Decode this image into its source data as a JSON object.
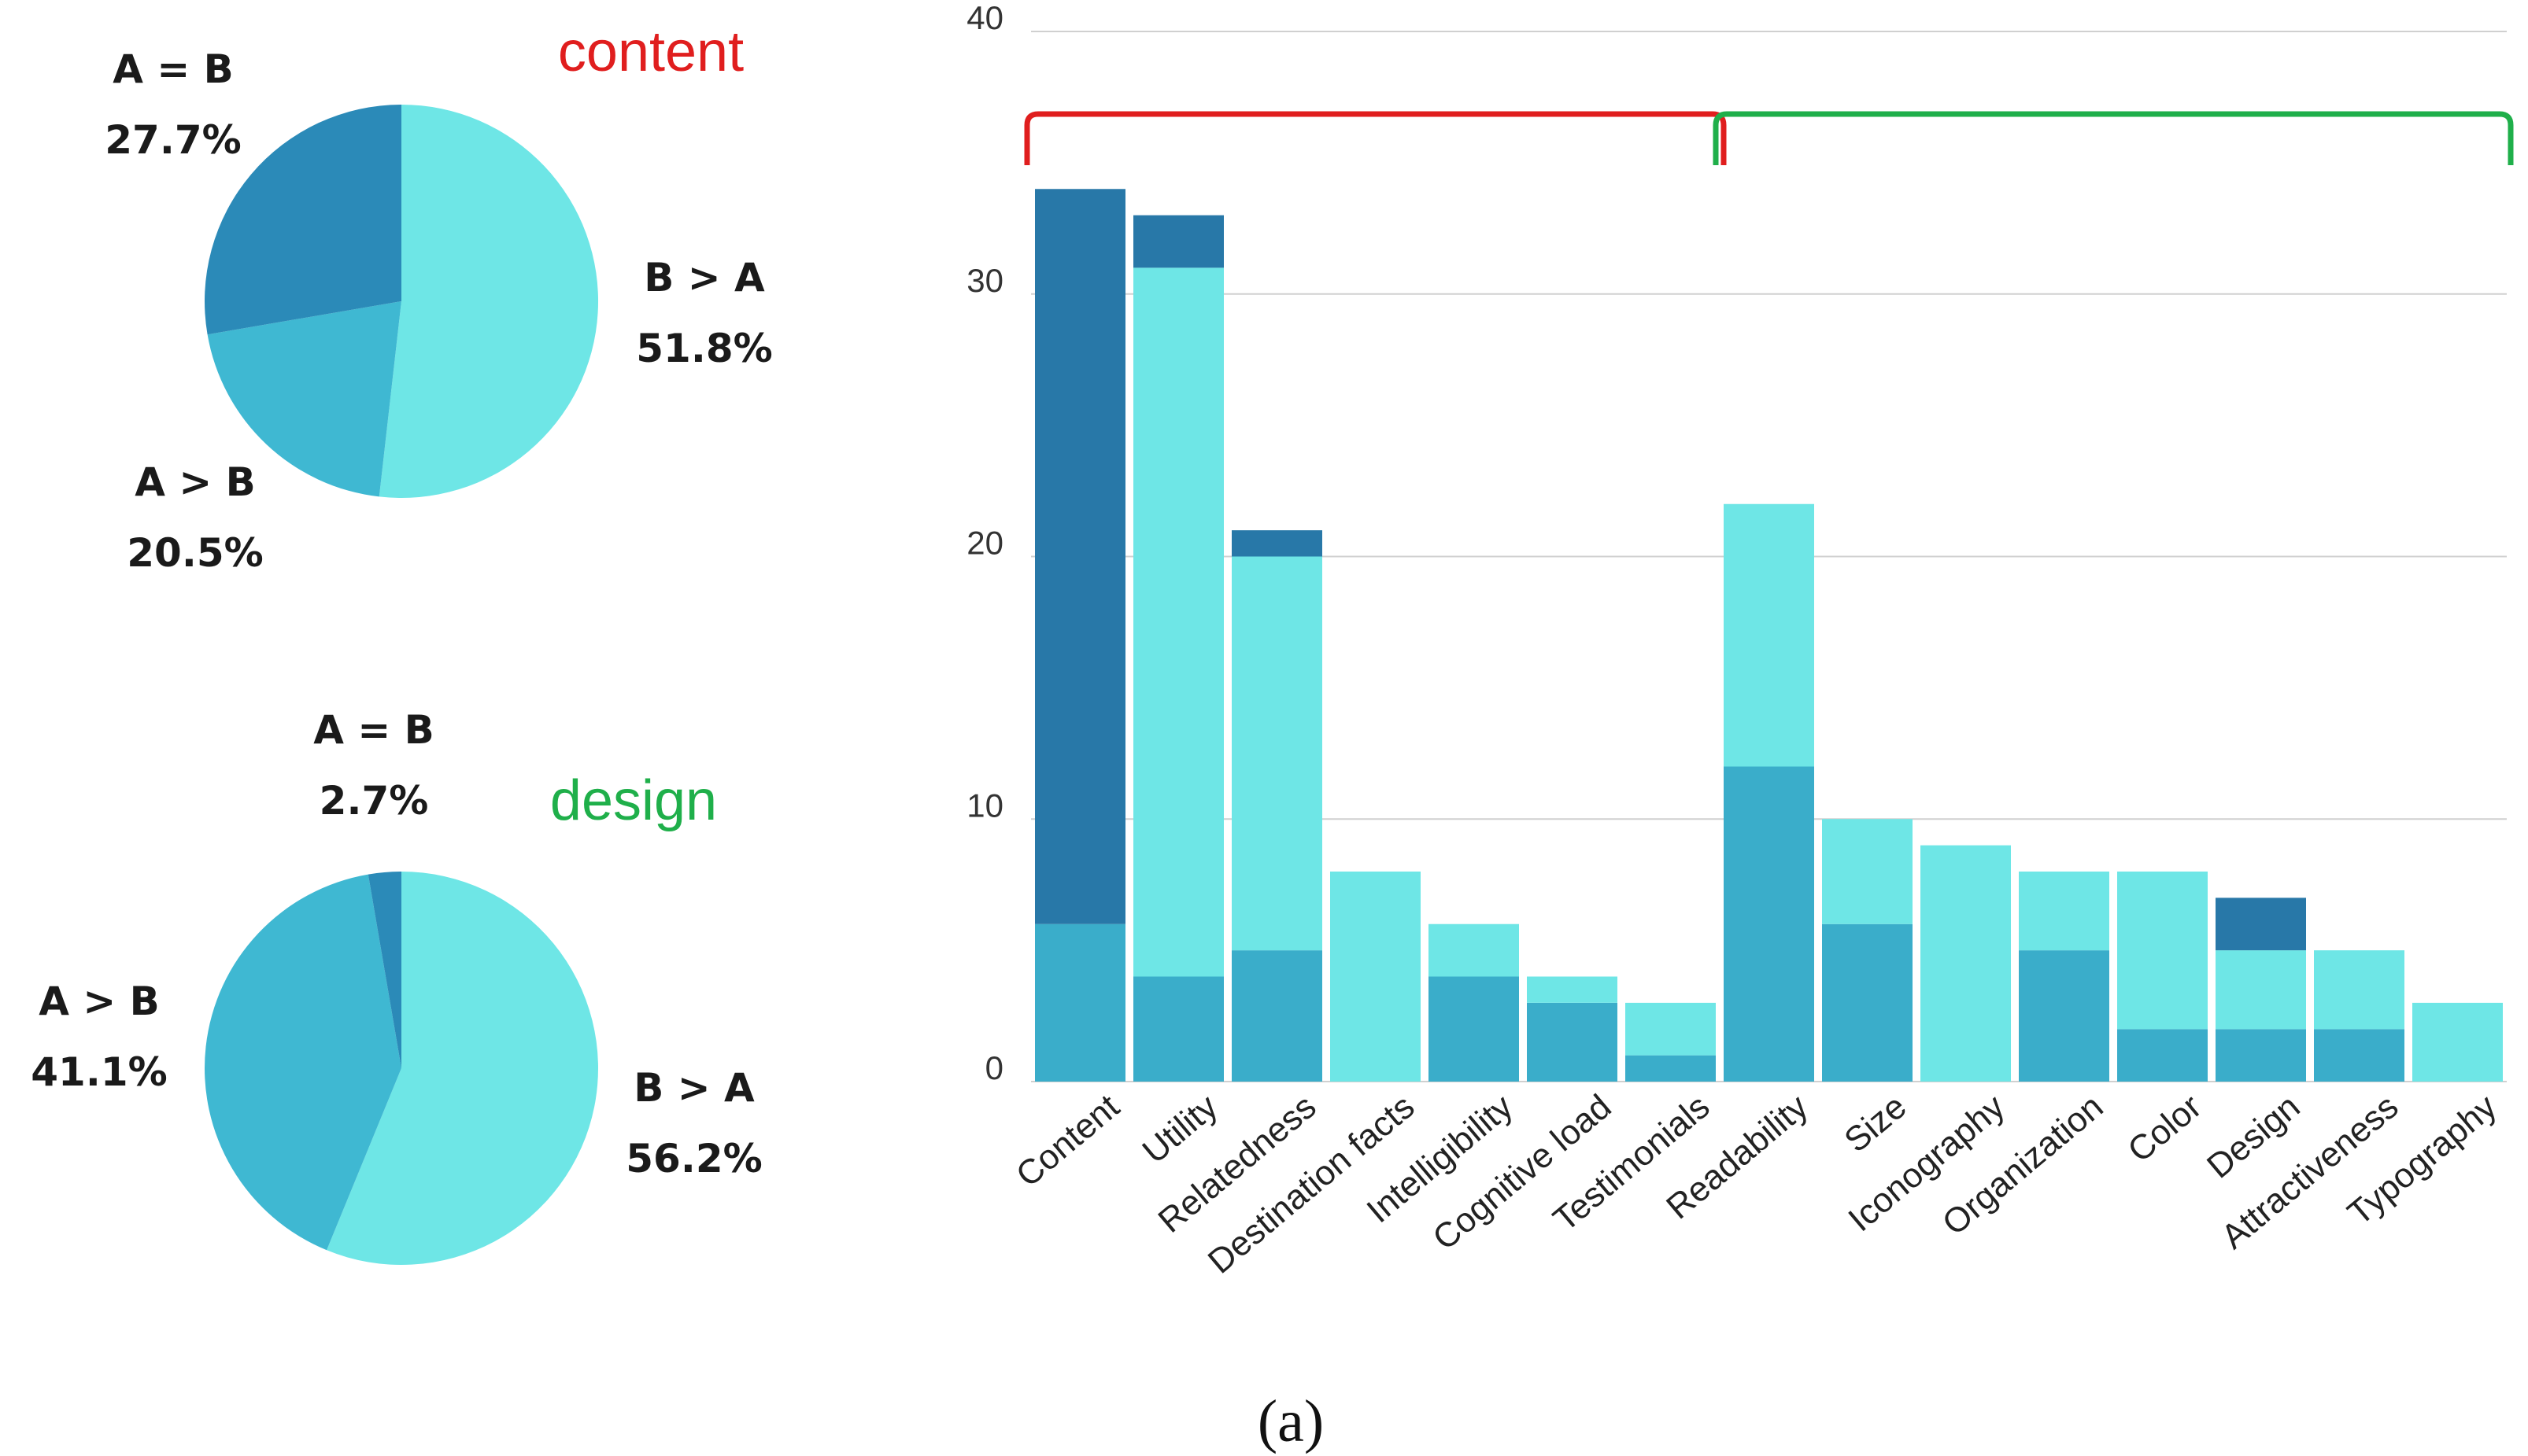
{
  "colors": {
    "dark": "#2878A8",
    "medium": "#3AADCA",
    "light": "#6EE6E6",
    "grid": "#D0D0D0",
    "content_bracket": "#E01E1E",
    "design_bracket": "#1FAF4A"
  },
  "caption": "(a)",
  "chart_data": [
    {
      "type": "pie",
      "title": "content",
      "title_color": "#E01E1E",
      "slices": [
        {
          "label": "B > A",
          "value": 51.8,
          "text": "51.8%",
          "color": "#6EE6E6"
        },
        {
          "label": "A > B",
          "value": 20.5,
          "text": "20.5%",
          "color": "#3FB8D2"
        },
        {
          "label": "A = B",
          "value": 27.7,
          "text": "27.7%",
          "color": "#2B8AB8"
        }
      ]
    },
    {
      "type": "pie",
      "title": "design",
      "title_color": "#1FAF4A",
      "slices": [
        {
          "label": "B > A",
          "value": 56.2,
          "text": "56.2%",
          "color": "#6EE6E6"
        },
        {
          "label": "A > B",
          "value": 41.1,
          "text": "41.1%",
          "color": "#3FB8D2"
        },
        {
          "label": "A = B",
          "value": 2.7,
          "text": "2.7%",
          "color": "#2B8AB8"
        }
      ]
    },
    {
      "type": "bar",
      "stacked": true,
      "ylim": [
        0,
        40
      ],
      "yticks": [
        0,
        10,
        20,
        30,
        40
      ],
      "grid": true,
      "categories": [
        "Content",
        "Utility",
        "Relatedness",
        "Destination facts",
        "Intelligibility",
        "Cognitive load",
        "Testimonials",
        "Readability",
        "Size",
        "Iconography",
        "Organization",
        "Color",
        "Design",
        "Attractiveness",
        "Typography"
      ],
      "series": [
        {
          "name": "A > B",
          "color": "#3AADCA",
          "values": [
            6,
            4,
            5,
            0,
            4,
            3,
            1,
            12,
            6,
            0,
            5,
            2,
            2,
            2,
            0
          ]
        },
        {
          "name": "B > A",
          "color": "#6EE6E6",
          "values": [
            0,
            27,
            15,
            8,
            2,
            1,
            2,
            10,
            4,
            9,
            3,
            6,
            3,
            3,
            3
          ]
        },
        {
          "name": "A = B",
          "color": "#2878A8",
          "values": [
            28,
            2,
            1,
            0,
            0,
            0,
            0,
            0,
            0,
            0,
            0,
            0,
            2,
            0,
            0
          ]
        }
      ],
      "groups": [
        {
          "name": "content",
          "from": 0,
          "to": 6
        },
        {
          "name": "design",
          "from": 7,
          "to": 14
        }
      ]
    }
  ]
}
